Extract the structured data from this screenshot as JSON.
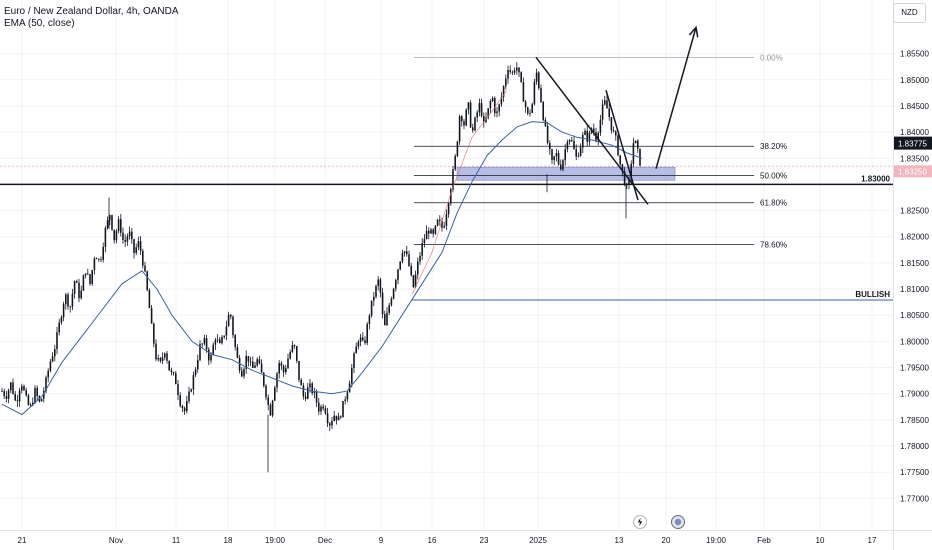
{
  "header": {
    "symbol_line": "Euro / New Zealand Dollar, 4h, OANDA",
    "indicator_line": "EMA (50, close)",
    "currency_button": "NZD"
  },
  "colors": {
    "candle": "#131722",
    "ema": "#3e62a6",
    "zone_fill": "#8f9bd9",
    "fib_line": "#131722",
    "bullish_line": "#3e62a6",
    "price_badge": "#131722",
    "current_price_bg": "#f2b6bd",
    "grid": "#f2f3f5"
  },
  "chart_data": {
    "type": "candlestick",
    "title": "Euro / New Zealand Dollar, 4h, OANDA",
    "currency": "NZD",
    "y_axis": {
      "ticks": [
        "1.85500",
        "1.85000",
        "1.84500",
        "1.84000",
        "1.83500",
        "1.82500",
        "1.82000",
        "1.81500",
        "1.81000",
        "1.80500",
        "1.80000",
        "1.79500",
        "1.79000",
        "1.78500",
        "1.78000",
        "1.77500",
        "1.77000"
      ],
      "range": [
        1.7672,
        1.862
      ]
    },
    "x_axis": {
      "ticks": [
        "21",
        "Nov",
        "11",
        "18",
        "19:00",
        "Dec",
        "9",
        "16",
        "23",
        "2025",
        "13",
        "20",
        "19:00",
        "Feb",
        "10",
        "17"
      ]
    },
    "current_price": "1.83775",
    "current_price_small": "1.83250",
    "key_level": {
      "label": "1.83000",
      "value": 1.83
    },
    "bullish_level": {
      "label": "BULLISH",
      "value": 1.8079
    },
    "fibonacci": [
      {
        "label": "0.00%",
        "value": 1.8543
      },
      {
        "label": "38.20%",
        "value": 1.8373
      },
      {
        "label": "50.00%",
        "value": 1.8317
      },
      {
        "label": "61.80%",
        "value": 1.8265
      },
      {
        "label": "78.60%",
        "value": 1.8185
      }
    ],
    "demand_zone": {
      "low": 1.8308,
      "high": 1.8333
    },
    "price_path": [
      [
        0,
        1.7905
      ],
      [
        4,
        1.7895
      ],
      [
        9,
        1.792
      ],
      [
        14,
        1.788
      ],
      [
        19,
        1.7925
      ],
      [
        24,
        1.789
      ],
      [
        28,
        1.787
      ],
      [
        33,
        1.7905
      ],
      [
        38,
        1.788
      ],
      [
        43,
        1.7915
      ],
      [
        48,
        1.796
      ],
      [
        53,
        1.799
      ],
      [
        58,
        1.804
      ],
      [
        63,
        1.809
      ],
      [
        68,
        1.8065
      ],
      [
        73,
        1.812
      ],
      [
        78,
        1.808
      ],
      [
        83,
        1.814
      ],
      [
        88,
        1.811
      ],
      [
        93,
        1.817
      ],
      [
        98,
        1.815
      ],
      [
        103,
        1.821
      ],
      [
        108,
        1.8245
      ],
      [
        112,
        1.8195
      ],
      [
        117,
        1.823
      ],
      [
        122,
        1.8185
      ],
      [
        127,
        1.821
      ],
      [
        132,
        1.817
      ],
      [
        137,
        1.819
      ],
      [
        142,
        1.814
      ],
      [
        147,
        1.807
      ],
      [
        150,
        1.802
      ],
      [
        154,
        1.797
      ],
      [
        158,
        1.7955
      ],
      [
        163,
        1.7985
      ],
      [
        168,
        1.794
      ],
      [
        173,
        1.793
      ],
      [
        178,
        1.7885
      ],
      [
        183,
        1.7865
      ],
      [
        188,
        1.7905
      ],
      [
        193,
        1.7945
      ],
      [
        198,
        1.799
      ],
      [
        203,
        1.8
      ],
      [
        208,
        1.796
      ],
      [
        213,
        1.801
      ],
      [
        218,
        1.799
      ],
      [
        223,
        1.802
      ],
      [
        228,
        1.806
      ],
      [
        232,
        1.8
      ],
      [
        236,
        1.796
      ],
      [
        240,
        1.794
      ],
      [
        245,
        1.7975
      ],
      [
        250,
        1.7945
      ],
      [
        255,
        1.7965
      ],
      [
        260,
        1.7935
      ],
      [
        264,
        1.79
      ],
      [
        268,
        1.786
      ],
      [
        272,
        1.791
      ],
      [
        277,
        1.796
      ],
      [
        282,
        1.794
      ],
      [
        287,
        1.7975
      ],
      [
        292,
        1.7995
      ],
      [
        297,
        1.793
      ],
      [
        302,
        1.789
      ],
      [
        307,
        1.7915
      ],
      [
        312,
        1.79
      ],
      [
        317,
        1.787
      ],
      [
        322,
        1.788
      ],
      [
        327,
        1.784
      ],
      [
        332,
        1.786
      ],
      [
        337,
        1.785
      ],
      [
        342,
        1.7885
      ],
      [
        347,
        1.792
      ],
      [
        352,
        1.797
      ],
      [
        357,
        1.801
      ],
      [
        362,
        1.799
      ],
      [
        367,
        1.805
      ],
      [
        372,
        1.809
      ],
      [
        377,
        1.812
      ],
      [
        382,
        1.802
      ],
      [
        386,
        1.806
      ],
      [
        391,
        1.81
      ],
      [
        396,
        1.814
      ],
      [
        401,
        1.818
      ],
      [
        406,
        1.8155
      ],
      [
        411,
        1.81
      ],
      [
        416,
        1.815
      ],
      [
        421,
        1.819
      ],
      [
        426,
        1.8215
      ],
      [
        431,
        1.82
      ],
      [
        436,
        1.823
      ],
      [
        441,
        1.8215
      ],
      [
        446,
        1.8265
      ],
      [
        450,
        1.831
      ],
      [
        454,
        1.836
      ],
      [
        458,
        1.844
      ],
      [
        462,
        1.8415
      ],
      [
        466,
        1.8455
      ],
      [
        470,
        1.8395
      ],
      [
        474,
        1.843
      ],
      [
        478,
        1.8455
      ],
      [
        482,
        1.841
      ],
      [
        486,
        1.844
      ],
      [
        490,
        1.847
      ],
      [
        494,
        1.843
      ],
      [
        498,
        1.8455
      ],
      [
        502,
        1.849
      ],
      [
        506,
        1.8525
      ],
      [
        510,
        1.851
      ],
      [
        514,
        1.853
      ],
      [
        518,
        1.85
      ],
      [
        522,
        1.846
      ],
      [
        526,
        1.843
      ],
      [
        530,
        1.845
      ],
      [
        534,
        1.852
      ],
      [
        538,
        1.8475
      ],
      [
        542,
        1.842
      ],
      [
        546,
        1.8375
      ],
      [
        550,
        1.834
      ],
      [
        554,
        1.836
      ],
      [
        558,
        1.833
      ],
      [
        562,
        1.8355
      ],
      [
        566,
        1.8395
      ],
      [
        570,
        1.838
      ],
      [
        574,
        1.835
      ],
      [
        578,
        1.837
      ],
      [
        582,
        1.84
      ],
      [
        586,
        1.8385
      ],
      [
        590,
        1.841
      ],
      [
        594,
        1.839
      ],
      [
        598,
        1.842
      ],
      [
        602,
        1.846
      ],
      [
        606,
        1.844
      ],
      [
        610,
        1.8405
      ],
      [
        614,
        1.8385
      ],
      [
        618,
        1.834
      ],
      [
        622,
        1.831
      ],
      [
        626,
        1.8285
      ],
      [
        629,
        1.834
      ],
      [
        632,
        1.839
      ],
      [
        636,
        1.836
      ],
      [
        640,
        1.8325
      ]
    ],
    "ema_path": [
      [
        0,
        1.788
      ],
      [
        20,
        1.786
      ],
      [
        40,
        1.7895
      ],
      [
        60,
        1.796
      ],
      [
        80,
        1.801
      ],
      [
        100,
        1.806
      ],
      [
        120,
        1.811
      ],
      [
        140,
        1.8135
      ],
      [
        155,
        1.81
      ],
      [
        170,
        1.805
      ],
      [
        190,
        1.8
      ],
      [
        210,
        1.7975
      ],
      [
        230,
        1.7965
      ],
      [
        250,
        1.7945
      ],
      [
        270,
        1.793
      ],
      [
        290,
        1.7915
      ],
      [
        310,
        1.7905
      ],
      [
        330,
        1.79
      ],
      [
        345,
        1.7905
      ],
      [
        360,
        1.794
      ],
      [
        380,
        1.799
      ],
      [
        400,
        1.805
      ],
      [
        420,
        1.811
      ],
      [
        440,
        1.817
      ],
      [
        455,
        1.8245
      ],
      [
        470,
        1.8305
      ],
      [
        485,
        1.8355
      ],
      [
        500,
        1.8385
      ],
      [
        515,
        1.841
      ],
      [
        530,
        1.842
      ],
      [
        545,
        1.8418
      ],
      [
        560,
        1.84
      ],
      [
        575,
        1.839
      ],
      [
        590,
        1.8385
      ],
      [
        610,
        1.8375
      ],
      [
        625,
        1.836
      ],
      [
        640,
        1.835
      ]
    ],
    "red_ma_path": [
      [
        410,
        1.809
      ],
      [
        430,
        1.817
      ],
      [
        450,
        1.829
      ],
      [
        470,
        1.839
      ],
      [
        490,
        1.844
      ],
      [
        505,
        1.848
      ]
    ],
    "trendlines": [
      {
        "from": [
          534,
          1.8543
        ],
        "to": [
          646,
          1.8262
        ]
      },
      {
        "from": [
          604,
          1.848
        ],
        "to": [
          636,
          1.827
        ]
      }
    ],
    "projection_arrow": {
      "from": [
        654,
        1.833
      ],
      "to": [
        694,
        1.86
      ]
    }
  }
}
